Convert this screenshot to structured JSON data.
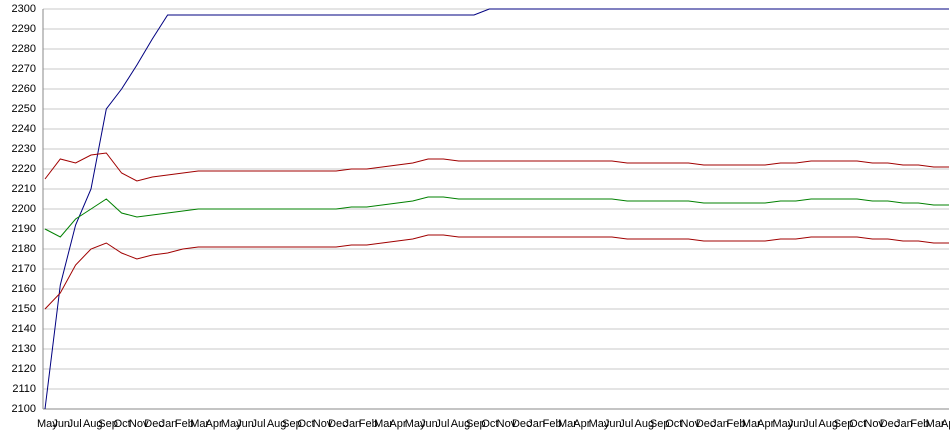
{
  "chart_data": {
    "type": "line",
    "categories": [
      "May",
      "Jun",
      "Jul",
      "Aug",
      "Sep",
      "Oct",
      "Nov",
      "Dec",
      "Jan",
      "Feb",
      "Mar",
      "Apr",
      "May",
      "Jun",
      "Jul",
      "Aug",
      "Sep",
      "Oct",
      "Nov",
      "Dec",
      "Jan",
      "Feb",
      "Mar",
      "Apr",
      "May",
      "Jun",
      "Jul",
      "Aug",
      "Sep",
      "Oct",
      "Nov",
      "Dec",
      "Jan",
      "Feb",
      "Mar",
      "Apr",
      "May",
      "Jun",
      "Jul",
      "Aug",
      "Sep",
      "Oct",
      "Nov",
      "Dec",
      "Jan",
      "Feb",
      "Mar",
      "Apr",
      "May",
      "Jun",
      "Jul",
      "Aug",
      "Sep",
      "Oct",
      "Nov",
      "Dec",
      "Jan",
      "Feb",
      "Mar",
      "Apr"
    ],
    "series": [
      {
        "color": "#000080",
        "values": [
          2100,
          2162,
          2192,
          2210,
          2250,
          2260,
          2272,
          2285,
          2297,
          2297,
          2297,
          2297,
          2297,
          2297,
          2297,
          2297,
          2297,
          2297,
          2297,
          2297,
          2297,
          2297,
          2297,
          2297,
          2297,
          2297,
          2297,
          2297,
          2297,
          2300,
          2300,
          2300,
          2300,
          2300,
          2300,
          2300,
          2300,
          2300,
          2300,
          2300,
          2300,
          2300,
          2300,
          2300,
          2300,
          2300,
          2300,
          2300,
          2300,
          2300,
          2300,
          2300,
          2300,
          2300,
          2300,
          2300,
          2300,
          2300,
          2300,
          2300
        ]
      },
      {
        "color": "#a00000",
        "values": [
          2215,
          2225,
          2223,
          2227,
          2228,
          2218,
          2214,
          2216,
          2217,
          2218,
          2219,
          2219,
          2219,
          2219,
          2219,
          2219,
          2219,
          2219,
          2219,
          2219,
          2220,
          2220,
          2221,
          2222,
          2223,
          2225,
          2225,
          2224,
          2224,
          2224,
          2224,
          2224,
          2224,
          2224,
          2224,
          2224,
          2224,
          2224,
          2223,
          2223,
          2223,
          2223,
          2223,
          2222,
          2222,
          2222,
          2222,
          2222,
          2223,
          2223,
          2224,
          2224,
          2224,
          2224,
          2223,
          2223,
          2222,
          2222,
          2221,
          2221
        ]
      },
      {
        "color": "#008000",
        "values": [
          2190,
          2186,
          2195,
          2200,
          2205,
          2198,
          2196,
          2197,
          2198,
          2199,
          2200,
          2200,
          2200,
          2200,
          2200,
          2200,
          2200,
          2200,
          2200,
          2200,
          2201,
          2201,
          2202,
          2203,
          2204,
          2206,
          2206,
          2205,
          2205,
          2205,
          2205,
          2205,
          2205,
          2205,
          2205,
          2205,
          2205,
          2205,
          2204,
          2204,
          2204,
          2204,
          2204,
          2203,
          2203,
          2203,
          2203,
          2203,
          2204,
          2204,
          2205,
          2205,
          2205,
          2205,
          2204,
          2204,
          2203,
          2203,
          2202,
          2202
        ]
      },
      {
        "color": "#a00000",
        "values": [
          2150,
          2158,
          2172,
          2180,
          2183,
          2178,
          2175,
          2177,
          2178,
          2180,
          2181,
          2181,
          2181,
          2181,
          2181,
          2181,
          2181,
          2181,
          2181,
          2181,
          2182,
          2182,
          2183,
          2184,
          2185,
          2187,
          2187,
          2186,
          2186,
          2186,
          2186,
          2186,
          2186,
          2186,
          2186,
          2186,
          2186,
          2186,
          2185,
          2185,
          2185,
          2185,
          2185,
          2184,
          2184,
          2184,
          2184,
          2184,
          2185,
          2185,
          2186,
          2186,
          2186,
          2186,
          2185,
          2185,
          2184,
          2184,
          2183,
          2183
        ]
      }
    ],
    "ylim": [
      2100,
      2300
    ],
    "yticks": [
      2100,
      2110,
      2120,
      2130,
      2140,
      2150,
      2160,
      2170,
      2180,
      2190,
      2200,
      2210,
      2220,
      2230,
      2240,
      2250,
      2260,
      2270,
      2280,
      2290,
      2300
    ],
    "grid": true
  }
}
